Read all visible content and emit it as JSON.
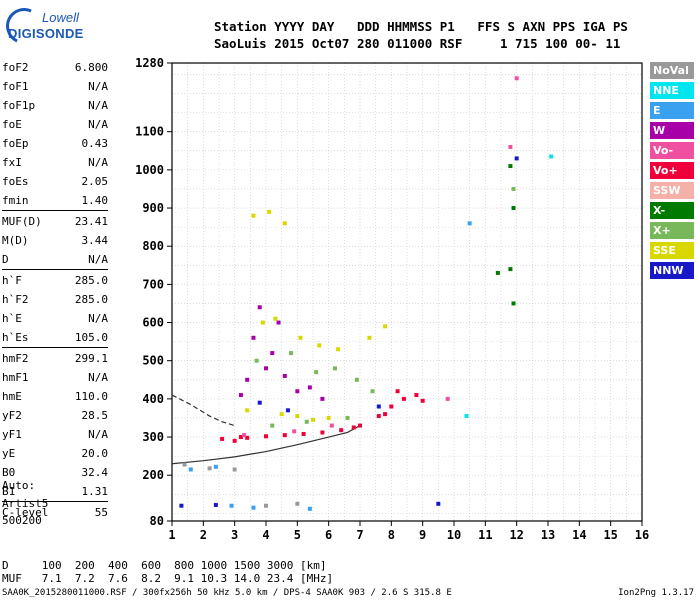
{
  "logo": {
    "brand": "Lowell",
    "product": "DIGISONDE"
  },
  "header": {
    "line1": "Station YYYY DAY   DDD HHMMSS P1   FFS S AXN PPS IGA PS",
    "line2": "SaoLuis 2015 Oct07 280 011000 RSF     1 715 100 00- 11"
  },
  "parameters": [
    {
      "label": "foF2",
      "value": "6.800"
    },
    {
      "label": "foF1",
      "value": "N/A"
    },
    {
      "label": "foF1p",
      "value": "N/A"
    },
    {
      "label": "foE",
      "value": "N/A"
    },
    {
      "label": "foEp",
      "value": "0.43"
    },
    {
      "label": "fxI",
      "value": "N/A"
    },
    {
      "label": "foEs",
      "value": "2.05"
    },
    {
      "label": "fmin",
      "value": "1.40"
    },
    {
      "label": "MUF(D)",
      "value": "23.41"
    },
    {
      "label": "M(D)",
      "value": "3.44"
    },
    {
      "label": "D",
      "value": "N/A"
    },
    {
      "label": "h`F",
      "value": "285.0"
    },
    {
      "label": "h`F2",
      "value": "285.0"
    },
    {
      "label": "h`E",
      "value": "N/A"
    },
    {
      "label": "h`Es",
      "value": "105.0"
    },
    {
      "label": "hmF2",
      "value": "299.1"
    },
    {
      "label": "hmF1",
      "value": "N/A"
    },
    {
      "label": "hmE",
      "value": "110.0"
    },
    {
      "label": "yF2",
      "value": "28.5"
    },
    {
      "label": "yF1",
      "value": "N/A"
    },
    {
      "label": "yE",
      "value": "20.0"
    },
    {
      "label": "B0",
      "value": "32.4"
    },
    {
      "label": "B1",
      "value": "1.31"
    },
    {
      "label": "C-level",
      "value": "55"
    }
  ],
  "auto": {
    "line1": "Auto:",
    "line2": "Artist5",
    "line3": "500200"
  },
  "legend": [
    {
      "label": "NoVal",
      "color": "#999999"
    },
    {
      "label": "NNE",
      "color": "#00e5ee"
    },
    {
      "label": "E",
      "color": "#3aa0f0"
    },
    {
      "label": "W",
      "color": "#a800a8"
    },
    {
      "label": "Vo-",
      "color": "#f050a0"
    },
    {
      "label": "Vo+",
      "color": "#f0003a"
    },
    {
      "label": "SSW",
      "color": "#f5b0a8"
    },
    {
      "label": "X-",
      "color": "#007a00"
    },
    {
      "label": "X+",
      "color": "#78b85a"
    },
    {
      "label": "SSE",
      "color": "#d8d800"
    },
    {
      "label": "NNW",
      "color": "#1818c8"
    }
  ],
  "footer": {
    "d_line": "D     100  200  400  600  800 1000 1500 3000 [km]",
    "muf_line": "MUF   7.1  7.2  7.6  8.2  9.1 10.3 14.0 23.4 [MHz]",
    "filename": "SAA0K_2015280011000.RSF / 300fx256h 50 kHz 5.0 km / DPS-4 SAA0K 903 / 2.6 S 315.8 E",
    "version": "Ion2Png 1.3.17"
  },
  "chart_data": {
    "type": "scatter",
    "title": "",
    "xlabel": "",
    "ylabel": "",
    "xlim": [
      1,
      16
    ],
    "ylim": [
      80,
      1280
    ],
    "x_ticks": [
      1,
      2,
      3,
      4,
      5,
      6,
      7,
      8,
      9,
      10,
      11,
      12,
      13,
      14,
      15,
      16
    ],
    "y_ticks": [
      80,
      200,
      300,
      400,
      500,
      600,
      700,
      800,
      900,
      1000,
      1100,
      1280
    ],
    "grid": true,
    "legend_position": "right",
    "series": [
      {
        "name": "Vo+",
        "color": "#f0003a",
        "points": [
          [
            2.6,
            295
          ],
          [
            3.0,
            290
          ],
          [
            3.4,
            298
          ],
          [
            4.0,
            302
          ],
          [
            4.6,
            305
          ],
          [
            5.2,
            308
          ],
          [
            5.8,
            312
          ],
          [
            6.4,
            318
          ],
          [
            7.0,
            330
          ],
          [
            7.6,
            355
          ],
          [
            8.0,
            380
          ],
          [
            8.4,
            400
          ],
          [
            8.8,
            410
          ],
          [
            9.0,
            395
          ],
          [
            7.8,
            360
          ],
          [
            8.2,
            420
          ],
          [
            6.8,
            325
          ],
          [
            3.2,
            300
          ]
        ]
      },
      {
        "name": "W",
        "color": "#a800a8",
        "points": [
          [
            3.4,
            450
          ],
          [
            3.6,
            560
          ],
          [
            4.0,
            480
          ],
          [
            4.2,
            520
          ],
          [
            4.6,
            460
          ],
          [
            5.0,
            420
          ],
          [
            5.4,
            430
          ],
          [
            3.8,
            640
          ],
          [
            4.4,
            600
          ],
          [
            3.2,
            410
          ],
          [
            5.8,
            400
          ]
        ]
      },
      {
        "name": "SSE",
        "color": "#d8d800",
        "points": [
          [
            3.6,
            880
          ],
          [
            4.1,
            890
          ],
          [
            4.6,
            860
          ],
          [
            3.9,
            600
          ],
          [
            4.3,
            610
          ],
          [
            5.1,
            560
          ],
          [
            5.7,
            540
          ],
          [
            6.3,
            530
          ],
          [
            7.3,
            560
          ],
          [
            7.8,
            590
          ],
          [
            4.5,
            360
          ],
          [
            5.0,
            355
          ],
          [
            5.5,
            345
          ],
          [
            3.4,
            370
          ],
          [
            6.0,
            350
          ]
        ]
      },
      {
        "name": "X+",
        "color": "#78b85a",
        "points": [
          [
            3.7,
            500
          ],
          [
            4.8,
            520
          ],
          [
            5.6,
            470
          ],
          [
            6.2,
            480
          ],
          [
            6.9,
            450
          ],
          [
            7.4,
            420
          ],
          [
            4.2,
            330
          ],
          [
            5.3,
            340
          ],
          [
            6.6,
            350
          ],
          [
            11.9,
            950
          ]
        ]
      },
      {
        "name": "NNW",
        "color": "#1818c8",
        "points": [
          [
            1.3,
            120
          ],
          [
            2.4,
            122
          ],
          [
            3.8,
            390
          ],
          [
            4.7,
            370
          ],
          [
            7.6,
            380
          ],
          [
            9.5,
            125
          ],
          [
            12.0,
            1030
          ]
        ]
      },
      {
        "name": "E",
        "color": "#3aa0f0",
        "points": [
          [
            1.6,
            215
          ],
          [
            2.4,
            222
          ],
          [
            2.9,
            120
          ],
          [
            3.6,
            115
          ],
          [
            5.4,
            112
          ],
          [
            10.5,
            860
          ]
        ]
      },
      {
        "name": "Vo-",
        "color": "#f050a0",
        "points": [
          [
            3.3,
            305
          ],
          [
            4.9,
            315
          ],
          [
            6.1,
            330
          ],
          [
            9.8,
            400
          ],
          [
            11.8,
            1060
          ],
          [
            12.0,
            1240
          ]
        ]
      },
      {
        "name": "X-",
        "color": "#007a00",
        "points": [
          [
            11.4,
            730
          ],
          [
            11.8,
            740
          ],
          [
            11.9,
            900
          ],
          [
            11.9,
            650
          ],
          [
            11.8,
            1010
          ]
        ]
      },
      {
        "name": "NNE",
        "color": "#00e5ee",
        "points": [
          [
            13.1,
            1035
          ],
          [
            10.4,
            355
          ]
        ]
      },
      {
        "name": "NoVal",
        "color": "#999999",
        "points": [
          [
            1.4,
            228
          ],
          [
            2.2,
            218
          ],
          [
            3.0,
            215
          ],
          [
            4.0,
            120
          ],
          [
            5.0,
            125
          ]
        ]
      }
    ],
    "trace_line": [
      [
        1,
        230
      ],
      [
        2,
        238
      ],
      [
        3,
        248
      ],
      [
        4,
        262
      ],
      [
        5,
        280
      ],
      [
        6,
        300
      ],
      [
        6.6,
        312
      ],
      [
        7,
        330
      ]
    ],
    "dashed_line": [
      [
        1,
        410
      ],
      [
        1.6,
        385
      ],
      [
        2.2,
        355
      ],
      [
        2.6,
        340
      ],
      [
        3.0,
        330
      ]
    ]
  }
}
